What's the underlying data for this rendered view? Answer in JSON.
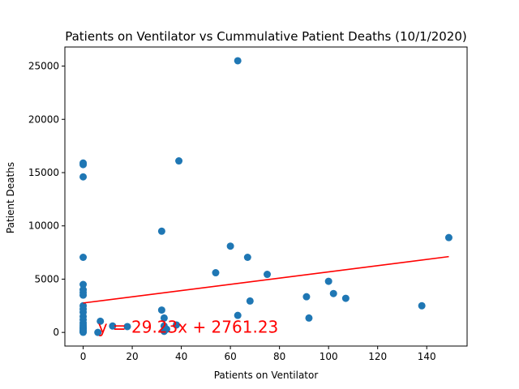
{
  "chart_data": {
    "type": "scatter",
    "title": "Patients on Ventilator vs Cummulative Patient Deaths (10/1/2020)",
    "xlabel": "Patients on Ventilator",
    "ylabel": "Patient Deaths",
    "xlim": [
      -7.45,
      156.45
    ],
    "ylim": [
      -1280,
      26790
    ],
    "xticks": [
      0,
      20,
      40,
      60,
      80,
      100,
      120,
      140
    ],
    "yticks": [
      0,
      5000,
      10000,
      15000,
      20000,
      25000
    ],
    "grid": false,
    "legend": "none",
    "marker_color": "#1f77b4",
    "line_color": "#ff0000",
    "regression": {
      "slope": 29.23,
      "intercept": 2761.23,
      "x_range": [
        0,
        149
      ]
    },
    "annotation": {
      "text": "y = 29.23x + 2761.23",
      "x": 6,
      "y": 500
    },
    "points": [
      [
        0,
        15900
      ],
      [
        0,
        15750
      ],
      [
        0,
        14600
      ],
      [
        0,
        7050
      ],
      [
        0,
        4500
      ],
      [
        0,
        4000
      ],
      [
        0,
        3750
      ],
      [
        0,
        3500
      ],
      [
        0,
        2500
      ],
      [
        0,
        2200
      ],
      [
        0,
        1900
      ],
      [
        0,
        1500
      ],
      [
        0,
        1200
      ],
      [
        0,
        900
      ],
      [
        0,
        700
      ],
      [
        0,
        500
      ],
      [
        0,
        350
      ],
      [
        0,
        200
      ],
      [
        0,
        100
      ],
      [
        0,
        50
      ],
      [
        0,
        10
      ],
      [
        6,
        0
      ],
      [
        7,
        1050
      ],
      [
        12,
        600
      ],
      [
        18,
        550
      ],
      [
        32,
        9500
      ],
      [
        32,
        2100
      ],
      [
        33,
        1350
      ],
      [
        33,
        600
      ],
      [
        33,
        100
      ],
      [
        34,
        300
      ],
      [
        38,
        700
      ],
      [
        39,
        16100
      ],
      [
        54,
        5600
      ],
      [
        60,
        8100
      ],
      [
        63,
        25500
      ],
      [
        63,
        1600
      ],
      [
        67,
        7050
      ],
      [
        68,
        2950
      ],
      [
        75,
        5450
      ],
      [
        91,
        3350
      ],
      [
        92,
        1350
      ],
      [
        100,
        4800
      ],
      [
        102,
        3650
      ],
      [
        107,
        3200
      ],
      [
        138,
        2500
      ],
      [
        149,
        8900
      ]
    ]
  }
}
